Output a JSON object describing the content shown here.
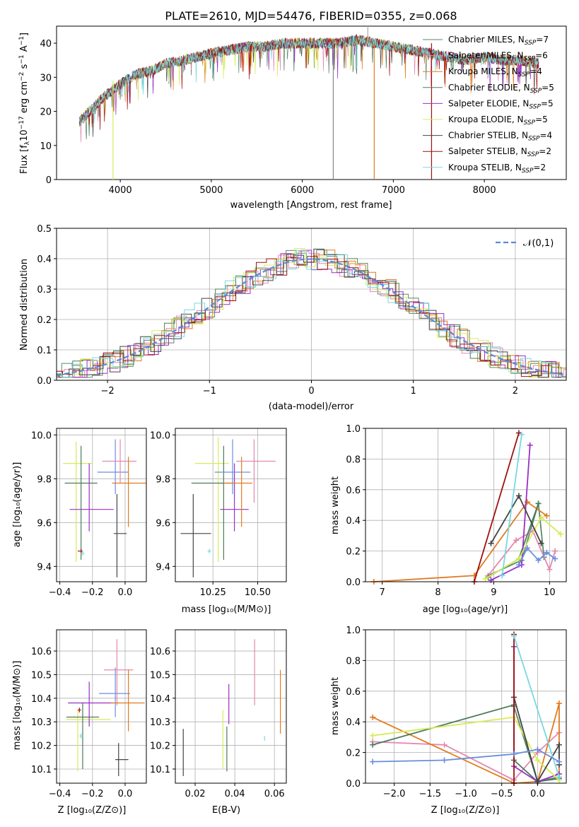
{
  "title": "PLATE=2610, MJD=54476, FIBERID=0355, z=0.068",
  "colors": {
    "Chabrier MILES": "#5a8a68",
    "Salpeter MILES": "#e488b0",
    "Kroupa MILES": "#e07b20",
    "Chabrier ELODIE": "#4c7a5c",
    "Salpeter ELODIE": "#9a2fc8",
    "Kroupa ELODIE": "#d6ec58",
    "Chabrier STELIB": "#444444",
    "Salpeter STELIB": "#a01010",
    "Kroupa STELIB": "#78d8e0",
    "normal": "#5b8ad6",
    "blue_series": "#6a8ee0"
  },
  "panels": {
    "spectrum": {
      "xlabel": "wavelength [Angstrom, rest frame]",
      "ylabel": "Flux [f",
      "ylabel_sub": "λ",
      "ylabel_rest": "10",
      "ylabel_exp": "−17",
      "ylabel_rest2": " erg cm",
      "ylabel_exp2": "−2",
      "ylabel_rest3": " s",
      "ylabel_exp3": "−1",
      "ylabel_rest4": " A",
      "ylabel_exp4": "−1",
      "ylabel_end": "]",
      "xticks": [
        "4000",
        "5000",
        "6000",
        "7000",
        "8000"
      ],
      "yticks": [
        "0",
        "10",
        "20",
        "30",
        "40"
      ],
      "legend": [
        {
          "prefix": "Chabrier MILES, N",
          "sub": "SSP",
          "suffix": "=7",
          "color": "#5a8a68"
        },
        {
          "prefix": "Salpeter MILES, N",
          "sub": "SSP",
          "suffix": "=6",
          "color": "#e488b0"
        },
        {
          "prefix": "Kroupa MILES, N",
          "sub": "SSP",
          "suffix": "=4",
          "color": "#e07b20"
        },
        {
          "prefix": "Chabrier ELODIE, N",
          "sub": "SSP",
          "suffix": "=5",
          "color": "#4c7a5c"
        },
        {
          "prefix": "Salpeter ELODIE, N",
          "sub": "SSP",
          "suffix": "=5",
          "color": "#9a2fc8"
        },
        {
          "prefix": "Kroupa ELODIE, N",
          "sub": "SSP",
          "suffix": "=5",
          "color": "#d6ec58"
        },
        {
          "prefix": "Chabrier STELIB, N",
          "sub": "SSP",
          "suffix": "=4",
          "color": "#444444"
        },
        {
          "prefix": "Salpeter STELIB, N",
          "sub": "SSP",
          "suffix": "=2",
          "color": "#a01010"
        },
        {
          "prefix": "Kroupa STELIB, N",
          "sub": "SSP",
          "suffix": "=2",
          "color": "#78d8e0"
        }
      ]
    },
    "residuals": {
      "xlabel": "(data-model)/error",
      "ylabel": "Normed distribution",
      "xticks": [
        "−2",
        "−1",
        "0",
        "1",
        "2"
      ],
      "yticks": [
        "0.0",
        "0.1",
        "0.2",
        "0.3",
        "0.4",
        "0.5"
      ],
      "legend": "𝒩(0,1)"
    },
    "age_Z": {
      "xlabel_a": "Z [log",
      "xlabel_sub": "10",
      "xlabel_b": "(Z/Z",
      "xlabel_sun": "⊙",
      "xlabel_c": ")]",
      "ylabel": "age  [log₁₀(age/yr)]",
      "xticks": [
        "−0.4",
        "−0.2",
        "0.0"
      ],
      "yticks": [
        "9.4",
        "9.6",
        "9.8",
        "10.0"
      ]
    },
    "age_mass": {
      "xlabel": "mass [log₁₀(M/M⊙)]",
      "xticks": [
        "10.25",
        "10.50"
      ],
      "yticks": [
        "9.4",
        "9.6",
        "9.8",
        "10.0"
      ]
    },
    "mw_age": {
      "xlabel": "age  [log₁₀(age/yr)]",
      "ylabel": "mass weight",
      "xticks": [
        "7",
        "8",
        "9",
        "10"
      ],
      "yticks": [
        "0.0",
        "0.2",
        "0.4",
        "0.6",
        "0.8",
        "1.0"
      ]
    },
    "mass_Z": {
      "xlabel": "Z [log₁₀(Z/Z⊙)]",
      "ylabel": "mass [log₁₀(M/M⊙)]",
      "xticks": [
        "−0.4",
        "−0.2",
        "0.0"
      ],
      "yticks": [
        "10.1",
        "10.2",
        "10.3",
        "10.4",
        "10.5",
        "10.6"
      ]
    },
    "mass_ebv": {
      "xlabel": "E(B-V)",
      "xticks": [
        "0.02",
        "0.04",
        "0.06"
      ],
      "yticks": [
        "10.1",
        "10.2",
        "10.3",
        "10.4",
        "10.5",
        "10.6"
      ]
    },
    "mw_Z": {
      "xlabel": "Z [log₁₀(Z/Z⊙)]",
      "ylabel": "mass weight",
      "xticks": [
        "−2.0",
        "−1.5",
        "−1.0",
        "−0.5",
        "0.0"
      ],
      "yticks": [
        "0.0",
        "0.2",
        "0.4",
        "0.6",
        "0.8",
        "1.0"
      ]
    }
  },
  "chart_data": [
    {
      "type": "line",
      "title": "PLATE=2610, MJD=54476, FIBERID=0355, z=0.068",
      "xlabel": "wavelength [Angstrom, rest frame]",
      "ylabel": "Flux [fλ10−17 erg cm−2 s−1 A−1]",
      "xlim": [
        3300,
        8900
      ],
      "ylim": [
        0,
        45
      ],
      "grid": false,
      "legend_position": "top-right",
      "x": [
        3550,
        3700,
        3850,
        3950,
        4050,
        4200,
        4350,
        4500,
        4700,
        4850,
        5000,
        5200,
        5400,
        5600,
        5800,
        6000,
        6200,
        6400,
        6600,
        6800,
        7000,
        7200,
        7400,
        7600,
        7800,
        8000,
        8200,
        8400,
        8600
      ],
      "series": [
        {
          "name": "Chabrier MILES, NSSP=7",
          "values": [
            17,
            21,
            25,
            27,
            29,
            31,
            32,
            34,
            35,
            36,
            37,
            38,
            39,
            39,
            40,
            40,
            40,
            40,
            41,
            40,
            39,
            38,
            37,
            36,
            35,
            36,
            35,
            35,
            34
          ]
        }
      ]
    },
    {
      "type": "bar",
      "title": "",
      "xlabel": "(data-model)/error",
      "ylabel": "Normed distribution",
      "xlim": [
        -2.5,
        2.5
      ],
      "ylim": [
        0,
        0.5
      ],
      "grid": true,
      "legend_position": "top-right",
      "series": [
        {
          "name": "𝒩(0,1)",
          "type": "line",
          "mu": 0,
          "sigma": 1
        }
      ]
    },
    {
      "type": "scatter",
      "xlabel": "Z [log10(Z/Z⊙)]",
      "ylabel": "age  [log10(age/yr)]",
      "xlim": [
        -0.42,
        0.13
      ],
      "ylim": [
        9.33,
        10.03
      ],
      "points": [
        {
          "x": -0.3,
          "y": 9.87,
          "xerr": [
            0.08,
            0.1
          ],
          "yerr": [
            0.45,
            0.1
          ],
          "c": "#d6ec58"
        },
        {
          "x": -0.27,
          "y": 9.78,
          "xerr": [
            0.1,
            0.1
          ],
          "yerr": [
            0.35,
            0.17
          ],
          "c": "#4c7a5c"
        },
        {
          "x": -0.22,
          "y": 9.66,
          "xerr": [
            0.12,
            0.15
          ],
          "yerr": [
            0.1,
            0.21
          ],
          "c": "#9a2fc8"
        },
        {
          "x": -0.06,
          "y": 9.83,
          "xerr": [
            0.11,
            0.08
          ],
          "yerr": [
            0.1,
            0.15
          ],
          "c": "#6a8ee0"
        },
        {
          "x": -0.03,
          "y": 9.88,
          "xerr": [
            0.11,
            0.1
          ],
          "yerr": [
            0.1,
            0.1
          ],
          "c": "#e488b0"
        },
        {
          "x": 0.02,
          "y": 9.78,
          "xerr": [
            0.1,
            0.11
          ],
          "yerr": [
            0.2,
            0.12
          ],
          "c": "#e07b20"
        },
        {
          "x": -0.05,
          "y": 9.55,
          "xerr": [
            0.02,
            0.06
          ],
          "yerr": [
            0.2,
            0.18
          ],
          "c": "#444444"
        },
        {
          "x": -0.27,
          "y": 9.47,
          "xerr": [
            0.02,
            0.01
          ],
          "yerr": [
            0.01,
            0.01
          ],
          "c": "#a01010"
        },
        {
          "x": -0.26,
          "y": 9.46,
          "xerr": [
            0.01,
            0.01
          ],
          "yerr": [
            0.01,
            0.01
          ],
          "c": "#78d8e0"
        }
      ]
    },
    {
      "type": "scatter",
      "xlabel": "mass [log10(M/M⊙)]",
      "ylabel": "",
      "xlim": [
        10.04,
        10.66
      ],
      "ylim": [
        9.33,
        10.03
      ],
      "points": [
        {
          "x": 10.28,
          "y": 9.87,
          "xerr": [
            0.13,
            0.06
          ],
          "yerr": [
            0.45,
            0.12
          ],
          "c": "#d6ec58"
        },
        {
          "x": 10.31,
          "y": 9.78,
          "xerr": [
            0.18,
            0.05
          ],
          "yerr": [
            0.35,
            0.17
          ],
          "c": "#4c7a5c"
        },
        {
          "x": 10.37,
          "y": 9.66,
          "xerr": [
            0.08,
            0.08
          ],
          "yerr": [
            0.1,
            0.21
          ],
          "c": "#9a2fc8"
        },
        {
          "x": 10.36,
          "y": 9.83,
          "xerr": [
            0.1,
            0.1
          ],
          "yerr": [
            0.1,
            0.15
          ],
          "c": "#6a8ee0"
        },
        {
          "x": 10.48,
          "y": 9.88,
          "xerr": [
            0.1,
            0.12
          ],
          "yerr": [
            0.19,
            0.1
          ],
          "c": "#e488b0"
        },
        {
          "x": 10.41,
          "y": 9.78,
          "xerr": [
            0.1,
            0.06
          ],
          "yerr": [
            0.2,
            0.12
          ],
          "c": "#e07b20"
        },
        {
          "x": 10.14,
          "y": 9.55,
          "xerr": [
            0.07,
            0.1
          ],
          "yerr": [
            0.2,
            0.18
          ],
          "c": "#444444"
        },
        {
          "x": 10.23,
          "y": 9.47,
          "xerr": [
            0.01,
            0.01
          ],
          "yerr": [
            0.01,
            0.01
          ],
          "c": "#78d8e0"
        }
      ]
    },
    {
      "type": "line",
      "xlabel": "age  [log10(age/yr)]",
      "ylabel": "mass weight",
      "xlim": [
        6.7,
        10.3
      ],
      "ylim": [
        0,
        1
      ],
      "series": [
        {
          "name": "Chabrier MILES",
          "c": "#5a8a68",
          "x": [
            8.9,
            9.5,
            9.8,
            9.9
          ],
          "y": [
            0.04,
            0.14,
            0.51,
            0.16
          ]
        },
        {
          "name": "Salpeter MILES",
          "c": "#e488b0",
          "x": [
            8.9,
            9.4,
            9.7,
            10.0,
            10.1
          ],
          "y": [
            0.04,
            0.27,
            0.33,
            0.08,
            0.2
          ]
        },
        {
          "name": "Kroupa MILES",
          "c": "#e07b20",
          "x": [
            6.85,
            8.65,
            9.6,
            9.95
          ],
          "y": [
            0.0,
            0.04,
            0.52,
            0.43
          ]
        },
        {
          "name": "Chabrier ELODIE",
          "c": "#4c7a5c",
          "x": [
            8.9,
            9.45,
            9.8
          ],
          "y": [
            0.03,
            0.15,
            0.51
          ]
        },
        {
          "name": "Salpeter ELODIE",
          "c": "#9a2fc8",
          "x": [
            8.95,
            9.5,
            9.65
          ],
          "y": [
            0.01,
            0.11,
            0.89
          ]
        },
        {
          "name": "Kroupa ELODIE",
          "c": "#d6ec58",
          "x": [
            8.85,
            9.45,
            9.85,
            10.2
          ],
          "y": [
            0.02,
            0.15,
            0.42,
            0.31
          ]
        },
        {
          "name": "Chabrier STELIB",
          "c": "#444444",
          "x": [
            8.95,
            9.45,
            9.85
          ],
          "y": [
            0.25,
            0.56,
            0.25
          ]
        },
        {
          "name": "Salpeter STELIB",
          "c": "#a01010",
          "x": [
            8.65,
            9.45
          ],
          "y": [
            0.0,
            0.97
          ]
        },
        {
          "name": "Kroupa STELIB",
          "c": "#78d8e0",
          "x": [
            9.15,
            9.5
          ],
          "y": [
            0.04,
            0.96
          ]
        },
        {
          "name": "blue",
          "c": "#6a8ee0",
          "x": [
            9.45,
            9.6,
            9.8,
            9.95,
            10.1
          ],
          "y": [
            0.11,
            0.22,
            0.14,
            0.19,
            0.15
          ]
        }
      ]
    },
    {
      "type": "scatter",
      "xlabel": "Z [log10(Z/Z⊙)]",
      "ylabel": "mass [log10(M/M⊙)]",
      "xlim": [
        -0.42,
        0.13
      ],
      "ylim": [
        10.04,
        10.69
      ],
      "points": [
        {
          "x": -0.29,
          "y": 10.31,
          "xerr": [
            0.07,
            0.2
          ],
          "yerr": [
            0.22,
            0.04
          ],
          "c": "#d6ec58"
        },
        {
          "x": -0.26,
          "y": 10.32,
          "xerr": [
            0.1,
            0.1
          ],
          "yerr": [
            0.22,
            0.06
          ],
          "c": "#4c7a5c"
        },
        {
          "x": -0.22,
          "y": 10.38,
          "xerr": [
            0.13,
            0.15
          ],
          "yerr": [
            0.1,
            0.09
          ],
          "c": "#9a2fc8"
        },
        {
          "x": -0.06,
          "y": 10.42,
          "xerr": [
            0.1,
            0.09
          ],
          "yerr": [
            0.1,
            0.11
          ],
          "c": "#6a8ee0"
        },
        {
          "x": -0.05,
          "y": 10.52,
          "xerr": [
            0.08,
            0.1
          ],
          "yerr": [
            0.15,
            0.13
          ],
          "c": "#e488b0"
        },
        {
          "x": 0.02,
          "y": 10.38,
          "xerr": [
            0.11,
            0.1
          ],
          "yerr": [
            0.12,
            0.14
          ],
          "c": "#e07b20"
        },
        {
          "x": -0.04,
          "y": 10.14,
          "xerr": [
            0.02,
            0.06
          ],
          "yerr": [
            0.07,
            0.07
          ],
          "c": "#444444"
        },
        {
          "x": -0.28,
          "y": 10.35,
          "xerr": [
            0.01,
            0.01
          ],
          "yerr": [
            0.01,
            0.01
          ],
          "c": "#a01010"
        },
        {
          "x": -0.27,
          "y": 10.24,
          "xerr": [
            0.01,
            0.01
          ],
          "yerr": [
            0.01,
            0.01
          ],
          "c": "#78d8e0"
        }
      ]
    },
    {
      "type": "scatter",
      "xlabel": "E(B-V)",
      "ylabel": "",
      "xlim": [
        0.01,
        0.066
      ],
      "ylim": [
        10.04,
        10.69
      ],
      "points": [
        {
          "x": 0.014,
          "y": 10.17,
          "yerr": [
            0.1,
            0.1
          ],
          "c": "#444444"
        },
        {
          "x": 0.034,
          "y": 10.22,
          "yerr": [
            0.12,
            0.13
          ],
          "c": "#d6ec58"
        },
        {
          "x": 0.036,
          "y": 10.17,
          "yerr": [
            0.08,
            0.11
          ],
          "c": "#4c7a5c"
        },
        {
          "x": 0.037,
          "y": 10.38,
          "yerr": [
            0.09,
            0.08
          ],
          "c": "#9a2fc8"
        },
        {
          "x": 0.05,
          "y": 10.5,
          "yerr": [
            0.13,
            0.15
          ],
          "c": "#e488b0"
        },
        {
          "x": 0.055,
          "y": 10.23,
          "yerr": [
            0.01,
            0.01
          ],
          "c": "#78d8e0"
        },
        {
          "x": 0.063,
          "y": 10.38,
          "yerr": [
            0.13,
            0.14
          ],
          "c": "#e07b20"
        }
      ]
    },
    {
      "type": "line",
      "xlabel": "Z [log10(Z/Z⊙)]",
      "ylabel": "mass weight",
      "xlim": [
        -2.4,
        0.4
      ],
      "ylim": [
        0,
        1
      ],
      "series": [
        {
          "name": "Chabrier MILES",
          "c": "#5a8a68",
          "x": [
            -0.33,
            0.0,
            0.3
          ],
          "y": [
            0.5,
            0.01,
            0.04
          ]
        },
        {
          "name": "Salpeter MILES",
          "c": "#e488b0",
          "x": [
            -2.3,
            -1.3,
            -0.33,
            0.0,
            0.3
          ],
          "y": [
            0.27,
            0.25,
            0.02,
            0.2,
            0.33
          ]
        },
        {
          "name": "Kroupa MILES",
          "c": "#e07b20",
          "x": [
            -2.3,
            -0.33,
            0.0,
            0.3,
            0.3
          ],
          "y": [
            0.43,
            0.0,
            0.01,
            0.52,
            0.04
          ]
        },
        {
          "name": "Chabrier ELODIE",
          "c": "#4c7a5c",
          "x": [
            -2.3,
            -0.33,
            -0.33,
            0.0,
            0.3
          ],
          "y": [
            0.25,
            0.51,
            0.15,
            0.01,
            0.03
          ]
        },
        {
          "name": "Salpeter ELODIE",
          "c": "#9a2fc8",
          "x": [
            -0.33,
            -0.33,
            0.0,
            0.3
          ],
          "y": [
            0.89,
            0.11,
            0.01,
            0.06
          ]
        },
        {
          "name": "Kroupa ELODIE",
          "c": "#d6ec58",
          "x": [
            -2.3,
            -0.33,
            0.0,
            0.3
          ],
          "y": [
            0.31,
            0.43,
            0.15,
            0.02
          ]
        },
        {
          "name": "Chabrier STELIB",
          "c": "#444444",
          "x": [
            -0.33,
            0.0,
            0.3,
            0.3
          ],
          "y": [
            0.56,
            0.01,
            0.25,
            0.12
          ]
        },
        {
          "name": "Salpeter STELIB",
          "c": "#a01010",
          "x": [
            -0.33,
            -0.33
          ],
          "y": [
            0.97,
            0.0
          ]
        },
        {
          "name": "Kroupa STELIB",
          "c": "#78d8e0",
          "x": [
            -0.33,
            0.3
          ],
          "y": [
            0.96,
            0.04
          ]
        },
        {
          "name": "blue",
          "c": "#6a8ee0",
          "x": [
            -2.3,
            -1.3,
            -0.33,
            0.0,
            0.3
          ],
          "y": [
            0.14,
            0.15,
            0.19,
            0.22,
            0.14
          ]
        }
      ]
    }
  ]
}
